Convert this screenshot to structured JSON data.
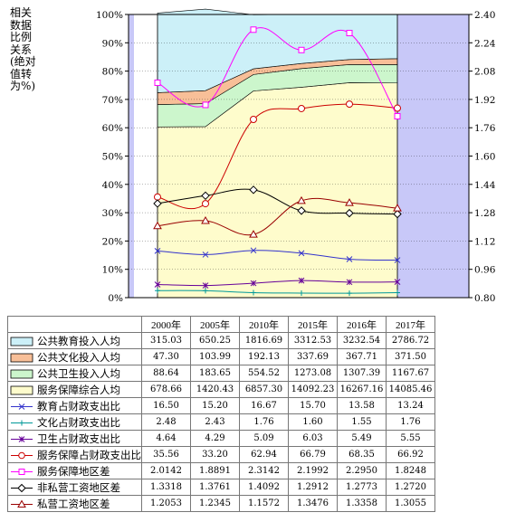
{
  "y_axis_title": "相关数据比例关系(绝对值转为%)",
  "chart_data": {
    "type": "area",
    "categories": [
      "2000年",
      "2005年",
      "2010年",
      "2015年",
      "2016年",
      "2017年"
    ],
    "y_left": {
      "min": 0,
      "max": 100,
      "ticks": [
        "0%",
        "10%",
        "20%",
        "30%",
        "40%",
        "50%",
        "60%",
        "70%",
        "80%",
        "90%",
        "100%"
      ]
    },
    "y_right": {
      "min": 0.8,
      "max": 2.4,
      "ticks": [
        "0.80",
        "0.96",
        "1.12",
        "1.28",
        "1.44",
        "1.60",
        "1.76",
        "1.92",
        "2.08",
        "2.24",
        "2.40"
      ]
    },
    "stacked_area_percent": {
      "公共教育投入人均": [
        28.1,
        28.8,
        19.1,
        17.3,
        15.9,
        15.6
      ],
      "公共文化投入人均": [
        4.2,
        4.6,
        2.0,
        1.8,
        1.8,
        2.1
      ],
      "公共卫生投入人均": [
        7.9,
        8.1,
        5.8,
        6.6,
        6.4,
        6.5
      ],
      "服务保障综合人均": [
        60.3,
        60.4,
        73.0,
        74.3,
        75.9,
        75.8
      ]
    },
    "table": [
      {
        "label": "公共教育投入人均",
        "key": "area-blue",
        "values": [
          "315.03",
          "650.25",
          "1816.69",
          "3312.53",
          "3232.54",
          "2786.72"
        ]
      },
      {
        "label": "公共文化投入人均",
        "key": "area-orange",
        "values": [
          "47.30",
          "103.99",
          "192.13",
          "337.69",
          "367.71",
          "371.50"
        ]
      },
      {
        "label": "公共卫生投入人均",
        "key": "area-green",
        "values": [
          "88.64",
          "183.65",
          "554.52",
          "1273.08",
          "1307.39",
          "1167.67"
        ]
      },
      {
        "label": "服务保障综合人均",
        "key": "area-yellow",
        "values": [
          "678.66",
          "1420.43",
          "6857.30",
          "14092.23",
          "16267.16",
          "14085.46"
        ]
      },
      {
        "label": "教育占财政支出比",
        "key": "line-x-blue",
        "values": [
          "16.50",
          "15.20",
          "16.67",
          "15.70",
          "13.58",
          "13.24"
        ]
      },
      {
        "label": "文化占财政支出比",
        "key": "line-plus-teal",
        "values": [
          "2.48",
          "2.43",
          "1.76",
          "1.60",
          "1.55",
          "1.76"
        ]
      },
      {
        "label": "卫生占财政支出比",
        "key": "line-star-purple",
        "values": [
          "4.64",
          "4.29",
          "5.09",
          "6.03",
          "5.49",
          "5.55"
        ]
      },
      {
        "label": "服务保障占财政支出比",
        "key": "line-circle-red",
        "values": [
          "35.56",
          "33.20",
          "62.94",
          "66.79",
          "68.35",
          "66.92"
        ]
      },
      {
        "label": "服务保障地区差",
        "key": "line-square-magenta",
        "values": [
          "2.0142",
          "1.8891",
          "2.3142",
          "2.1992",
          "2.2950",
          "1.8248"
        ]
      },
      {
        "label": "非私营工资地区差",
        "key": "line-diamond-black",
        "values": [
          "1.3318",
          "1.3761",
          "1.4092",
          "1.2912",
          "1.2773",
          "1.2720"
        ]
      },
      {
        "label": "私营工资地区差",
        "key": "line-tri-brown",
        "values": [
          "1.2053",
          "1.2345",
          "1.1572",
          "1.3476",
          "1.3358",
          "1.3055"
        ]
      }
    ],
    "line_series_left_axis": {
      "教育占财政支出比": [
        16.5,
        15.2,
        16.67,
        15.7,
        13.58,
        13.24
      ],
      "文化占财政支出比": [
        2.48,
        2.43,
        1.76,
        1.6,
        1.55,
        1.76
      ],
      "卫生占财政支出比": [
        4.64,
        4.29,
        5.09,
        6.03,
        5.49,
        5.55
      ],
      "服务保障占财政支出比": [
        35.56,
        33.2,
        62.94,
        66.79,
        68.35,
        66.92
      ]
    },
    "line_series_right_axis": {
      "服务保障地区差": [
        2.0142,
        1.8891,
        2.3142,
        2.1992,
        2.295,
        1.8248
      ],
      "非私营工资地区差": [
        1.3318,
        1.3761,
        1.4092,
        1.2912,
        1.2773,
        1.272
      ],
      "私营工资地区差": [
        1.2053,
        1.2345,
        1.1572,
        1.3476,
        1.3358,
        1.3055
      ]
    },
    "colors": {
      "blue_area": "#ccf0f8",
      "orange_area": "#f8bf98",
      "green_area": "#ccf6cc",
      "yellow_area": "#fefccc",
      "side_band": "#c8c8f8",
      "edu_line": "#3333cc",
      "culture_line": "#009999",
      "health_line": "#660099",
      "service_line": "#cc0000",
      "service_diff_line": "#ff00ff",
      "nonprivate_line": "#000000",
      "private_line": "#990000"
    }
  }
}
